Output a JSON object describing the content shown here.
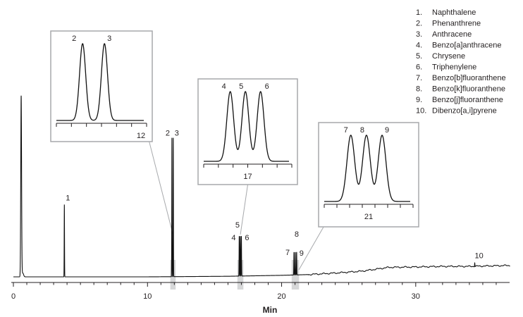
{
  "chart_data": {
    "type": "line",
    "title": "",
    "xlabel": "Min",
    "ylabel": "",
    "xlim": [
      0,
      37
    ],
    "x_ticks": [
      0,
      10,
      20,
      30
    ],
    "legend_placement": "top-right",
    "legend": [
      {
        "num": "1.",
        "name": "Naphthalene"
      },
      {
        "num": "2.",
        "name": "Phenanthrene"
      },
      {
        "num": "3.",
        "name": "Anthracene"
      },
      {
        "num": "4.",
        "name": "Benzo[a]anthracene"
      },
      {
        "num": "5.",
        "name": "Chrysene"
      },
      {
        "num": "6.",
        "name": "Triphenylene"
      },
      {
        "num": "7.",
        "name": "Benzo[b]fluoranthene"
      },
      {
        "num": "8.",
        "name": "Benzo[k]fluoranthene"
      },
      {
        "num": "9.",
        "name": "Benzo[j]fluoranthene"
      },
      {
        "num": "10.",
        "name": "Dibenzo[a,i]pyrene"
      }
    ],
    "peaks": [
      {
        "label": "1",
        "rt": 3.8,
        "height": 0.38
      },
      {
        "label": "2",
        "rt": 11.82,
        "height": 0.73
      },
      {
        "label": "3",
        "rt": 11.92,
        "height": 0.73
      },
      {
        "label": "4",
        "rt": 16.84,
        "height": 0.21
      },
      {
        "label": "5",
        "rt": 16.92,
        "height": 0.21
      },
      {
        "label": "6",
        "rt": 17.0,
        "height": 0.21
      },
      {
        "label": "7",
        "rt": 20.92,
        "height": 0.12
      },
      {
        "label": "8",
        "rt": 21.02,
        "height": 0.12
      },
      {
        "label": "9",
        "rt": 21.12,
        "height": 0.12
      },
      {
        "label": "10",
        "rt": 34.4,
        "height": 0.02
      }
    ],
    "void_peak": {
      "rt": 0.58,
      "height": 0.95
    },
    "baseline": [
      [
        0,
        0
      ],
      [
        10,
        0
      ],
      [
        16,
        0.003
      ],
      [
        20,
        0.008
      ],
      [
        22,
        0.012
      ],
      [
        24,
        0.02
      ],
      [
        26,
        0.03
      ],
      [
        27,
        0.04
      ],
      [
        28,
        0.05
      ],
      [
        30,
        0.052
      ],
      [
        32,
        0.055
      ],
      [
        34,
        0.055
      ],
      [
        37,
        0.06
      ]
    ],
    "insets": [
      {
        "center_label": "12",
        "zoom_range": [
          11.7,
          12.1
        ],
        "peak_labels": [
          "2",
          "3"
        ]
      },
      {
        "center_label": "17",
        "zoom_range": [
          16.7,
          17.15
        ],
        "peak_labels": [
          "4",
          "5",
          "6"
        ]
      },
      {
        "center_label": "21",
        "zoom_range": [
          20.75,
          21.3
        ],
        "peak_labels": [
          "7",
          "8",
          "9"
        ]
      }
    ]
  },
  "colors": {
    "trace": "#111111",
    "inset_border": "#a7a9ac",
    "highlight": "#c8c9cb"
  }
}
